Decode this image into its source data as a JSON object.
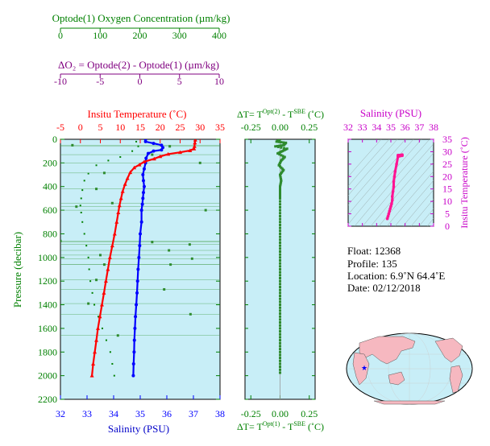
{
  "axes": {
    "oxygen_title": "Optode(1) Oxygen Concentration (µm/kg)",
    "oxygen_ticks": [
      "0",
      "100",
      "200",
      "300",
      "400"
    ],
    "delta_o2_title": "ΔO₂ = Optode(2) - Optode(1)    (µm/kg)",
    "delta_o2_ticks": [
      "-10",
      "-5",
      "0",
      "5",
      "10"
    ],
    "temperature_title": "Insitu Temperature (˚C)",
    "temperature_ticks": [
      "-5",
      "0",
      "5",
      "10",
      "15",
      "20",
      "25",
      "30",
      "35"
    ],
    "salinity_title": "Salinity (PSU)",
    "salinity_ticks": [
      "32",
      "33",
      "34",
      "35",
      "36",
      "37",
      "38"
    ],
    "pressure_title": "Pressure (decibar)",
    "pressure_ticks": [
      "0",
      "200",
      "400",
      "600",
      "800",
      "1000",
      "1200",
      "1400",
      "1600",
      "1800",
      "2000",
      "2200"
    ],
    "delta_t_top": {
      "a": "ΔT= T",
      "sup1": "Opt(2)",
      "b": " - T",
      "sup2": "SBE",
      "c": " (˚C)"
    },
    "delta_t_bottom": {
      "a": "ΔT= T",
      "sup1": "Opt(1)",
      "b": " - T",
      "sup2": "SBE",
      "c": " (˚C)"
    },
    "delta_t_ticks": [
      "-0.25",
      "0.00",
      "0.25"
    ],
    "ts_salinity_title": "Salinity (PSU)",
    "ts_salinity_ticks": [
      "32",
      "33",
      "34",
      "35",
      "36",
      "37",
      "38"
    ],
    "ts_temperature_title": "Insitu Temperature (˚C)",
    "ts_temperature_ticks": [
      "0",
      "5",
      "10",
      "15",
      "20",
      "25",
      "30",
      "35"
    ]
  },
  "info": {
    "float": "Float:  12368",
    "profile": "Profile:  135",
    "location": "Location:  6.9˚N  64.4˚E",
    "date": "Date:  02/12/2018"
  },
  "colors": {
    "temperature": "#ff0000",
    "salinity": "#0000ff",
    "oxygen": "#008000",
    "delta_o2": "#800080",
    "ts_profile": "#ff1493",
    "panel_background": "#c8eef7"
  },
  "chart_data": [
    {
      "type": "line",
      "panel": "main profile",
      "y_axis": {
        "label": "Pressure (decibar)",
        "range": [
          2200,
          0
        ],
        "inverted": true
      },
      "x_axes": [
        {
          "name": "Insitu Temperature (˚C)",
          "range": [
            -5,
            35
          ],
          "position": "top"
        },
        {
          "name": "Salinity (PSU)",
          "range": [
            32,
            38
          ],
          "position": "bottom"
        },
        {
          "name": "Optode(1) Oxygen Concentration (µm/kg)",
          "range": [
            0,
            400
          ],
          "position": "top"
        },
        {
          "name": "ΔO₂ = Optode(2) - Optode(1) (µm/kg)",
          "range": [
            -10,
            10
          ],
          "position": "top"
        }
      ],
      "series": [
        {
          "axis": "temperature",
          "color": "#ff0000",
          "marker": "triangle",
          "points": [
            [
              28.8,
              5
            ],
            [
              28.7,
              30
            ],
            [
              28.6,
              60
            ],
            [
              28.5,
              80
            ],
            [
              27.5,
              95
            ],
            [
              25,
              110
            ],
            [
              22,
              125
            ],
            [
              20,
              145
            ],
            [
              18.5,
              165
            ],
            [
              16,
              190
            ],
            [
              14.8,
              215
            ],
            [
              13.5,
              240
            ],
            [
              12.5,
              280
            ],
            [
              11.8,
              330
            ],
            [
              11.2,
              380
            ],
            [
              10.6,
              440
            ],
            [
              10.2,
              500
            ],
            [
              9.8,
              560
            ],
            [
              9.5,
              620
            ],
            [
              9.1,
              700
            ],
            [
              8.6,
              800
            ],
            [
              8.0,
              900
            ],
            [
              7.4,
              1000
            ],
            [
              6.9,
              1100
            ],
            [
              6.4,
              1200
            ],
            [
              5.9,
              1300
            ],
            [
              5.4,
              1400
            ],
            [
              4.9,
              1500
            ],
            [
              4.4,
              1600
            ],
            [
              4.0,
              1700
            ],
            [
              3.6,
              1800
            ],
            [
              3.2,
              1900
            ],
            [
              2.9,
              2000
            ]
          ]
        },
        {
          "axis": "salinity",
          "color": "#0000ff",
          "marker": "circle",
          "points": [
            [
              35.2,
              0
            ],
            [
              35.2,
              20
            ],
            [
              35.5,
              35
            ],
            [
              35.8,
              50
            ],
            [
              35.85,
              70
            ],
            [
              35.8,
              90
            ],
            [
              35.5,
              100
            ],
            [
              35.3,
              120
            ],
            [
              35.22,
              160
            ],
            [
              35.2,
              200
            ],
            [
              35.15,
              250
            ],
            [
              35.1,
              300
            ],
            [
              35.12,
              350
            ],
            [
              35.15,
              400
            ],
            [
              35.12,
              450
            ],
            [
              35.1,
              500
            ],
            [
              35.08,
              550
            ],
            [
              35.05,
              600
            ],
            [
              35.05,
              700
            ],
            [
              35.0,
              800
            ],
            [
              34.98,
              900
            ],
            [
              34.95,
              1000
            ],
            [
              34.92,
              1100
            ],
            [
              34.9,
              1200
            ],
            [
              34.88,
              1300
            ],
            [
              34.85,
              1400
            ],
            [
              34.82,
              1500
            ],
            [
              34.8,
              1600
            ],
            [
              34.78,
              1700
            ],
            [
              34.77,
              1800
            ],
            [
              34.75,
              1900
            ],
            [
              34.74,
              2000
            ]
          ]
        },
        {
          "axis": "oxygen",
          "color": "#008000",
          "marker": "square",
          "points": [
            [
              190,
              20
            ],
            [
              195,
              60
            ],
            [
              180,
              100
            ],
            [
              150,
              150
            ],
            [
              120,
              180
            ],
            [
              90,
              220
            ],
            [
              70,
              290
            ],
            [
              60,
              350
            ],
            [
              55,
              430
            ],
            [
              52,
              500
            ],
            [
              50,
              560
            ],
            [
              52,
              620
            ],
            [
              55,
              700
            ],
            [
              60,
              800
            ],
            [
              65,
              900
            ],
            [
              70,
              1000
            ],
            [
              72,
              1100
            ],
            [
              75,
              1200
            ],
            [
              80,
              1300
            ],
            [
              85,
              1400
            ],
            [
              95,
              1500
            ],
            [
              105,
              1600
            ],
            [
              115,
              1700
            ],
            [
              125,
              1800
            ],
            [
              130,
              1900
            ],
            [
              135,
              2000
            ]
          ]
        },
        {
          "axis": "delta_o2",
          "color": "#800080",
          "marker": "square",
          "points": [
            [
              -8.5,
              50
            ],
            [
              3.7,
              60
            ],
            [
              1.5,
              130
            ],
            [
              7.5,
              200
            ],
            [
              -4.5,
              285
            ],
            [
              -5.5,
              420
            ],
            [
              -3.5,
              540
            ],
            [
              -8,
              570
            ],
            [
              8.2,
              600
            ],
            [
              -10,
              860
            ],
            [
              1.5,
              870
            ],
            [
              6.2,
              890
            ],
            [
              3.6,
              940
            ],
            [
              -5,
              980
            ],
            [
              6.5,
              1010
            ],
            [
              3.8,
              1060
            ],
            [
              -4.5,
              1060
            ],
            [
              -5.5,
              1190
            ],
            [
              3,
              1270
            ],
            [
              -6.5,
              1390
            ],
            [
              6.3,
              1480
            ],
            [
              -2.8,
              1660
            ]
          ]
        }
      ]
    },
    {
      "type": "scatter",
      "panel": "delta T",
      "x_axis": {
        "label": "ΔT (˚C)",
        "range": [
          -0.25,
          0.25
        ]
      },
      "y_axis": {
        "label": "Pressure (decibar)",
        "range": [
          2200,
          0
        ],
        "inverted": true
      },
      "series": [
        {
          "name": "Opt(2) - SBE",
          "color": "#008000",
          "points": [
            [
              0.0,
              0
            ],
            [
              -0.03,
              20
            ],
            [
              0.05,
              30
            ],
            [
              0.03,
              50
            ],
            [
              -0.04,
              60
            ],
            [
              0.06,
              80
            ],
            [
              0.02,
              100
            ],
            [
              -0.02,
              120
            ],
            [
              0.04,
              150
            ],
            [
              0.01,
              180
            ],
            [
              -0.01,
              220
            ],
            [
              0.03,
              260
            ],
            [
              0.0,
              300
            ],
            [
              0.01,
              350
            ],
            [
              0.0,
              400
            ],
            [
              0.0,
              450
            ],
            [
              0.0,
              500
            ],
            [
              0.0,
              600
            ],
            [
              0.0,
              700
            ],
            [
              0.0,
              800
            ],
            [
              0.0,
              900
            ],
            [
              0.0,
              1000
            ],
            [
              0.0,
              1100
            ],
            [
              0.0,
              1200
            ],
            [
              0.0,
              1300
            ],
            [
              0.0,
              1400
            ],
            [
              0.0,
              1500
            ],
            [
              0.0,
              1600
            ],
            [
              0.0,
              1700
            ],
            [
              0.0,
              1800
            ],
            [
              0.0,
              1900
            ],
            [
              0.0,
              2000
            ]
          ]
        }
      ]
    },
    {
      "type": "line",
      "panel": "T-S diagram",
      "x_axis": {
        "label": "Salinity (PSU)",
        "range": [
          32,
          38
        ]
      },
      "y_axis": {
        "label": "Insitu Temperature (˚C)",
        "range": [
          0,
          35
        ]
      },
      "series": [
        {
          "color": "#ff1493",
          "points": [
            [
              35.8,
              28.8
            ],
            [
              35.5,
              28.6
            ],
            [
              35.8,
              28.4
            ],
            [
              35.5,
              28
            ],
            [
              35.4,
              25
            ],
            [
              35.3,
              22
            ],
            [
              35.25,
              20
            ],
            [
              35.2,
              18
            ],
            [
              35.2,
              16
            ],
            [
              35.15,
              14
            ],
            [
              35.1,
              12
            ],
            [
              35.1,
              10.5
            ],
            [
              35.05,
              9
            ],
            [
              35.0,
              8
            ],
            [
              34.95,
              7
            ],
            [
              34.9,
              6
            ],
            [
              34.85,
              5
            ],
            [
              34.8,
              4
            ],
            [
              34.75,
              3
            ]
          ]
        }
      ]
    }
  ]
}
